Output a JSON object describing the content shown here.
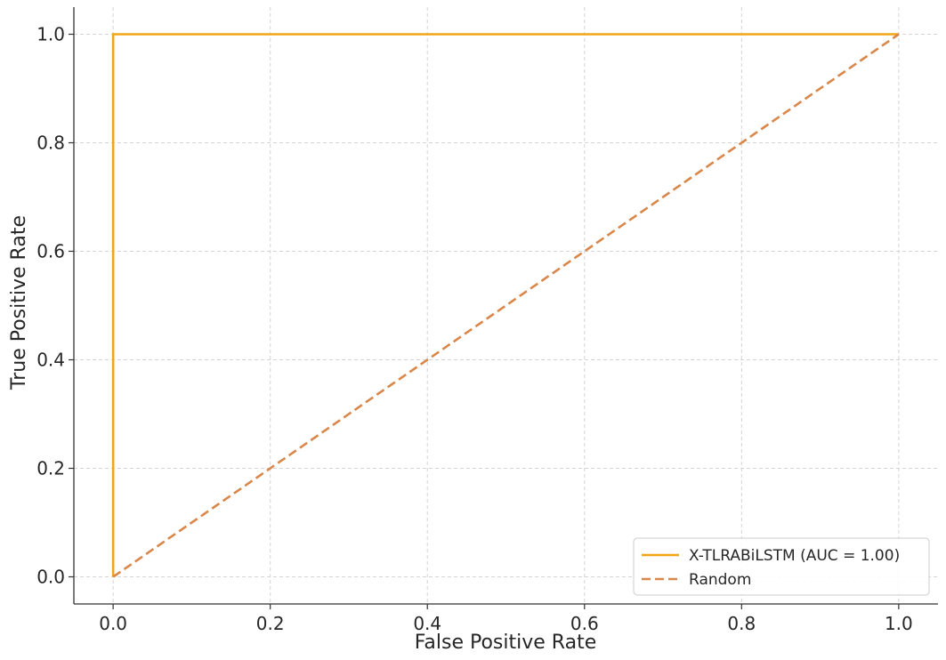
{
  "chart_data": {
    "type": "line",
    "title": "",
    "xlabel": "False Positive Rate",
    "ylabel": "True Positive Rate",
    "xlim": [
      -0.05,
      1.05
    ],
    "ylim": [
      -0.05,
      1.05
    ],
    "xticks": [
      0.0,
      0.2,
      0.4,
      0.6,
      0.8,
      1.0
    ],
    "yticks": [
      0.0,
      0.2,
      0.4,
      0.6,
      0.8,
      1.0
    ],
    "xtick_labels": [
      "0.0",
      "0.2",
      "0.4",
      "0.6",
      "0.8",
      "1.0"
    ],
    "ytick_labels": [
      "0.0",
      "0.2",
      "0.4",
      "0.6",
      "0.8",
      "1.0"
    ],
    "grid": true,
    "legend_position": "lower right",
    "series": [
      {
        "name": "X-TLRABiLSTM (AUC = 1.00)",
        "x": [
          0.0,
          0.0,
          1.0
        ],
        "y": [
          0.0,
          1.0,
          1.0
        ],
        "color": "#f2a516",
        "style": "solid"
      },
      {
        "name": "Random",
        "x": [
          0.0,
          1.0
        ],
        "y": [
          0.0,
          1.0
        ],
        "color": "#d9874a",
        "style": "dashed"
      }
    ]
  }
}
